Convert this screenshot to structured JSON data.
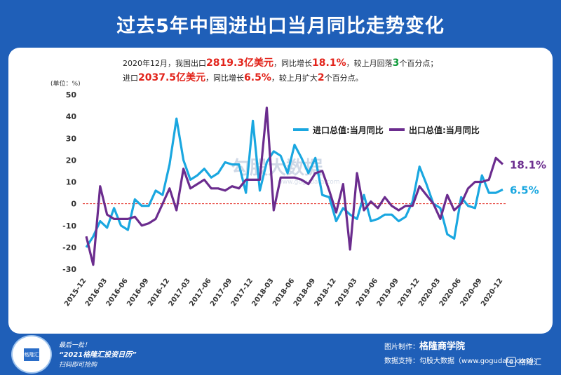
{
  "title": "过去5年中国进出口当月同比走势变化",
  "summary": {
    "line1": {
      "a": "2020年12月，我国出口",
      "v1": "2819.3亿美元",
      "b": "，同比增长",
      "v2": "18.1%",
      "c": "，较上月回落",
      "v3": "3",
      "d": "个百分点；"
    },
    "line2": {
      "a": "进口",
      "v1": "2037.5亿美元",
      "b": "，同比增长",
      "v2": "6.5%",
      "c": "，较上月扩大",
      "v3": "2",
      "d": "个百分点。"
    }
  },
  "watermark": "勾股大数据",
  "watermark_url": "www.gogudata.com",
  "chart_data": {
    "type": "line",
    "ylabel": "(单位：%)",
    "ylim": [
      -30,
      50
    ],
    "yticks": [
      50,
      40,
      30,
      20,
      10,
      0,
      -10,
      -20,
      -30
    ],
    "x": [
      "2015-12",
      "2016-01",
      "2016-02",
      "2016-03",
      "2016-04",
      "2016-05",
      "2016-06",
      "2016-07",
      "2016-08",
      "2016-09",
      "2016-10",
      "2016-11",
      "2016-12",
      "2017-01",
      "2017-02",
      "2017-03",
      "2017-04",
      "2017-05",
      "2017-06",
      "2017-07",
      "2017-08",
      "2017-09",
      "2017-10",
      "2017-11",
      "2017-12",
      "2018-01",
      "2018-02",
      "2018-03",
      "2018-04",
      "2018-05",
      "2018-06",
      "2018-07",
      "2018-08",
      "2018-09",
      "2018-10",
      "2018-11",
      "2018-12",
      "2019-01",
      "2019-02",
      "2019-03",
      "2019-04",
      "2019-05",
      "2019-06",
      "2019-07",
      "2019-08",
      "2019-09",
      "2019-10",
      "2019-11",
      "2019-12",
      "2020-01",
      "2020-02",
      "2020-03",
      "2020-04",
      "2020-05",
      "2020-06",
      "2020-07",
      "2020-08",
      "2020-09",
      "2020-10",
      "2020-11",
      "2020-12"
    ],
    "xtick_labels": [
      "2015-12",
      "2016-03",
      "2016-06",
      "2016-09",
      "2016-12",
      "2017-03",
      "2017-06",
      "2017-09",
      "2017-12",
      "2018-03",
      "2018-06",
      "2018-09",
      "2018-12",
      "2019-03",
      "2019-06",
      "2019-09",
      "2019-12",
      "2020-03",
      "2020-06",
      "2020-09",
      "2020-12"
    ],
    "zero_line": true,
    "legend_position": "top-right",
    "series": [
      {
        "name": "进口总值:当月同比",
        "color": "#1aa7e0",
        "end_label": "6.5%",
        "values": [
          -20,
          -15,
          -8,
          -11,
          -2,
          -10,
          -12,
          2,
          -1,
          -1,
          6,
          4,
          18,
          39,
          20,
          11,
          13,
          16,
          12,
          14,
          19,
          18,
          18,
          5,
          38,
          6,
          19,
          24,
          22,
          14,
          27,
          21,
          14,
          21,
          4,
          3,
          -8,
          -2,
          -5,
          -7,
          4,
          -8,
          -7,
          -5,
          -5,
          -8,
          -6,
          1,
          17,
          9,
          0,
          -2,
          -14,
          -16,
          3,
          -1,
          -2,
          13,
          5,
          5,
          6.5
        ]
      },
      {
        "name": "出口总值:当月同比",
        "color": "#6b2c8e",
        "end_label": "18.1%",
        "values": [
          -15,
          -28,
          8,
          -5,
          -7,
          -7,
          -7,
          -6,
          -10,
          -9,
          -7,
          0,
          7,
          -3,
          16,
          7,
          9,
          11,
          7,
          7,
          6,
          8,
          7,
          11,
          11,
          11,
          44,
          -3,
          12,
          12,
          12,
          11,
          9,
          14,
          15,
          6,
          -4,
          9,
          -21,
          14,
          -3,
          1,
          -2,
          3,
          -1,
          -3,
          -1,
          -1,
          8,
          4,
          0,
          -7,
          4,
          -3,
          0,
          7,
          10,
          10,
          11,
          21,
          18.1
        ]
      }
    ]
  },
  "footer": {
    "qr_label": "格隆汇",
    "promo_line1": "最后一批！",
    "promo_line2": "“2021格隆汇投资日历”",
    "promo_line3": "扫码即可抢购",
    "credit_label1": "图片制作：",
    "credit_brand": "格隆商学院",
    "credit_label2": "数据支持：勾股大数据",
    "credit_url": "（www.gogudata.com）",
    "logo_text": "格隆汇"
  }
}
